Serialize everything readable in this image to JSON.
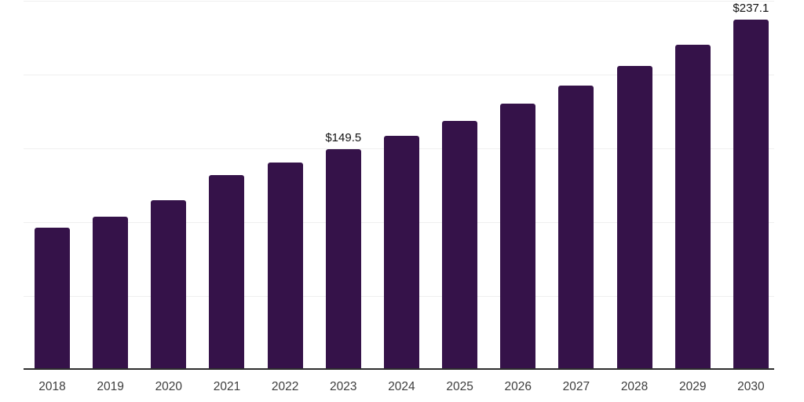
{
  "chart_data": {
    "type": "bar",
    "title": "",
    "categories": [
      "2018",
      "2019",
      "2020",
      "2021",
      "2022",
      "2023",
      "2024",
      "2025",
      "2026",
      "2027",
      "2028",
      "2029",
      "2030"
    ],
    "values": [
      96.4,
      103.9,
      115.0,
      131.9,
      140.4,
      149.5,
      158.4,
      168.4,
      180.1,
      192.3,
      206.1,
      220.4,
      237.1
    ],
    "data_labels": {
      "2023": "$149.5",
      "2030": "$237.1"
    },
    "xlabel": "",
    "ylabel": "",
    "ylim": [
      0,
      250
    ],
    "gridline_step": 50,
    "grid": "horizontal",
    "legend_position": "none",
    "y_axis_labels_visible": false
  },
  "colors": {
    "bar": "#351249",
    "gridline": "#efefef",
    "axis_line": "#2e2e2e",
    "value_label": "#111111",
    "tick_label": "#3d3d3d",
    "background": "#ffffff"
  }
}
